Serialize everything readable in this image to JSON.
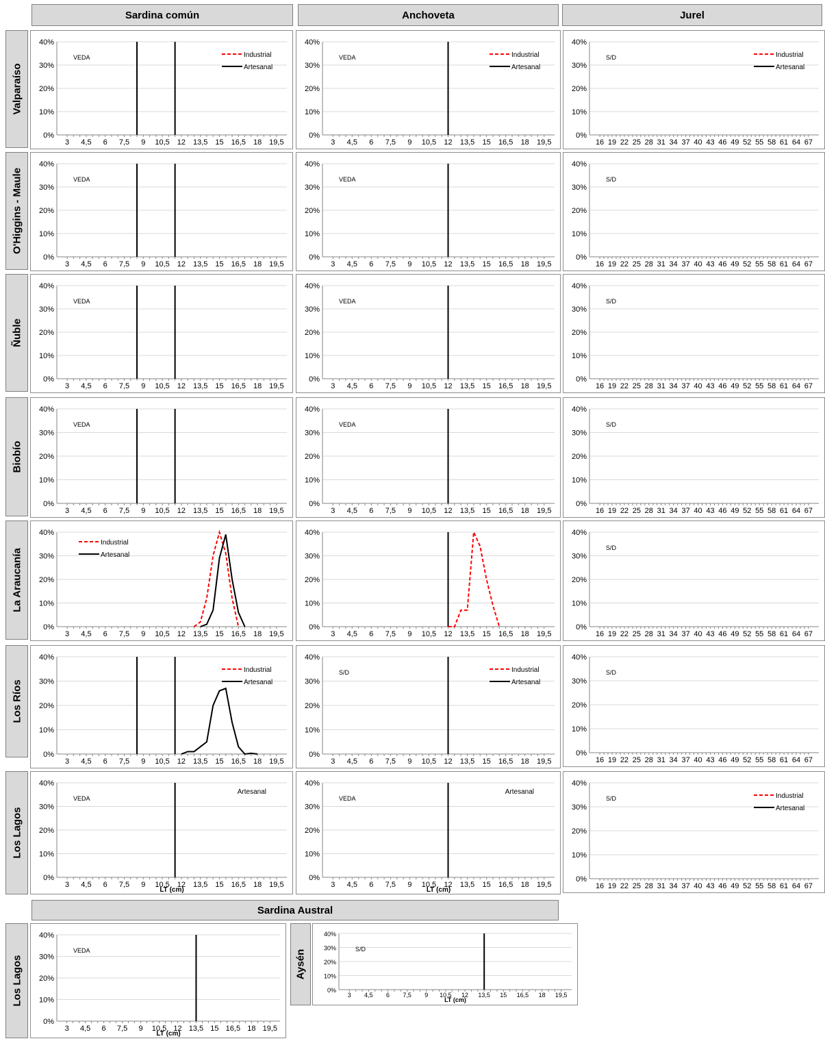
{
  "column_headers": [
    "Sardina común",
    "Anchoveta",
    "Jurel"
  ],
  "section_header": "Sardina Austral",
  "row_labels": [
    "Valparaíso",
    "O'Higgins - Maule",
    "Ñuble",
    "Biobío",
    "La Araucanía",
    "Los Ríos",
    "Los Lagos"
  ],
  "austral_row_labels": [
    "Los Lagos",
    "Aysén"
  ],
  "colors": {
    "industrial": "#ff0000",
    "artesanal": "#000000",
    "header_bg": "#d9d9d9",
    "grid": "#d9d9d9"
  },
  "legend": {
    "industrial": "Industrial",
    "artesanal": "Artesanal"
  },
  "chart_data": [
    {
      "id": "sc-valparaiso",
      "type": "line",
      "note": "VEDA",
      "legend": [
        "Industrial",
        "Artesanal"
      ],
      "legend_position": "top-right",
      "x_categories": "small",
      "ylim": [
        0,
        0.4
      ],
      "yticks": [
        "0%",
        "10%",
        "20%",
        "30%",
        "40%"
      ],
      "vlines": [
        8.5,
        11.5
      ],
      "series": []
    },
    {
      "id": "an-valparaiso",
      "type": "line",
      "note": "VEDA",
      "legend": [
        "Industrial",
        "Artesanal"
      ],
      "legend_position": "top-right",
      "x_categories": "small",
      "ylim": [
        0,
        0.4
      ],
      "yticks": [
        "0%",
        "10%",
        "20%",
        "30%",
        "40%"
      ],
      "vlines": [
        12
      ],
      "series": []
    },
    {
      "id": "ju-valparaiso",
      "type": "line",
      "note": "S/D",
      "legend": [
        "Industrial",
        "Artesanal"
      ],
      "legend_position": "top-right",
      "x_categories": "jurel",
      "ylim": [
        0,
        0.4
      ],
      "yticks": [
        "0%",
        "10%",
        "20%",
        "30%",
        "40%"
      ],
      "vlines": [],
      "series": []
    },
    {
      "id": "sc-ohiggins",
      "type": "line",
      "note": "VEDA",
      "legend": [],
      "x_categories": "small",
      "ylim": [
        0,
        0.4
      ],
      "yticks": [
        "0%",
        "10%",
        "20%",
        "30%",
        "40%"
      ],
      "vlines": [
        8.5,
        11.5
      ],
      "series": []
    },
    {
      "id": "an-ohiggins",
      "type": "line",
      "note": "VEDA",
      "legend": [],
      "x_categories": "small",
      "ylim": [
        0,
        0.4
      ],
      "yticks": [
        "0%",
        "10%",
        "20%",
        "30%",
        "40%"
      ],
      "vlines": [
        12
      ],
      "series": []
    },
    {
      "id": "ju-ohiggins",
      "type": "line",
      "note": "S/D",
      "legend": [],
      "x_categories": "jurel",
      "ylim": [
        0,
        0.4
      ],
      "yticks": [
        "0%",
        "10%",
        "20%",
        "30%",
        "40%"
      ],
      "vlines": [],
      "series": []
    },
    {
      "id": "sc-nuble",
      "type": "line",
      "note": "VEDA",
      "legend": [],
      "x_categories": "small",
      "ylim": [
        0,
        0.4
      ],
      "yticks": [
        "0%",
        "10%",
        "20%",
        "30%",
        "40%"
      ],
      "vlines": [
        8.5,
        11.5
      ],
      "series": []
    },
    {
      "id": "an-nuble",
      "type": "line",
      "note": "VEDA",
      "legend": [],
      "x_categories": "small",
      "ylim": [
        0,
        0.4
      ],
      "yticks": [
        "0%",
        "10%",
        "20%",
        "30%",
        "40%"
      ],
      "vlines": [
        12
      ],
      "series": []
    },
    {
      "id": "ju-nuble",
      "type": "line",
      "note": "S/D",
      "legend": [],
      "x_categories": "jurel",
      "ylim": [
        0,
        0.4
      ],
      "yticks": [
        "0%",
        "10%",
        "20%",
        "30%",
        "40%"
      ],
      "vlines": [],
      "series": []
    },
    {
      "id": "sc-biobio",
      "type": "line",
      "note": "VEDA",
      "legend": [],
      "x_categories": "small",
      "ylim": [
        0,
        0.4
      ],
      "yticks": [
        "0%",
        "10%",
        "20%",
        "30%",
        "40%"
      ],
      "vlines": [
        8.5,
        11.5
      ],
      "series": []
    },
    {
      "id": "an-biobio",
      "type": "line",
      "note": "VEDA",
      "legend": [],
      "x_categories": "small",
      "ylim": [
        0,
        0.4
      ],
      "yticks": [
        "0%",
        "10%",
        "20%",
        "30%",
        "40%"
      ],
      "vlines": [
        12
      ],
      "series": []
    },
    {
      "id": "ju-biobio",
      "type": "line",
      "note": "S/D",
      "legend": [],
      "x_categories": "jurel",
      "ylim": [
        0,
        0.4
      ],
      "yticks": [
        "0%",
        "10%",
        "20%",
        "30%",
        "40%"
      ],
      "vlines": [],
      "series": []
    },
    {
      "id": "sc-araucania",
      "type": "line",
      "note": "",
      "legend": [
        "Industrial",
        "Artesanal"
      ],
      "legend_position": "top-left",
      "x_categories": "small",
      "ylim": [
        0,
        0.4
      ],
      "yticks": [
        "0%",
        "10%",
        "20%",
        "30%",
        "40%"
      ],
      "vlines": [],
      "series": [
        {
          "name": "Industrial",
          "dashed": true,
          "x": [
            13,
            13.5,
            14,
            14.5,
            15,
            15.5,
            16,
            16.5
          ],
          "y": [
            0,
            0.02,
            0.12,
            0.3,
            0.4,
            0.31,
            0.12,
            0
          ]
        },
        {
          "name": "Artesanal",
          "dashed": false,
          "x": [
            13.5,
            14,
            14.5,
            15,
            15.5,
            16,
            16.5,
            17
          ],
          "y": [
            0,
            0.01,
            0.07,
            0.29,
            0.39,
            0.2,
            0.06,
            0
          ]
        }
      ]
    },
    {
      "id": "an-araucania",
      "type": "line",
      "note": "",
      "legend": [],
      "x_categories": "small",
      "ylim": [
        0,
        0.4
      ],
      "yticks": [
        "0%",
        "10%",
        "20%",
        "30%",
        "40%"
      ],
      "vlines": [
        12
      ],
      "series": [
        {
          "name": "Industrial",
          "dashed": true,
          "x": [
            12,
            12.5,
            13,
            13.5,
            14,
            14.5,
            15,
            15.5,
            16
          ],
          "y": [
            0,
            0,
            0.07,
            0.07,
            0.4,
            0.34,
            0.2,
            0.09,
            0
          ]
        }
      ]
    },
    {
      "id": "ju-araucania",
      "type": "line",
      "note": "S/D",
      "legend": [],
      "x_categories": "jurel",
      "ylim": [
        0,
        0.4
      ],
      "yticks": [
        "0%",
        "10%",
        "20%",
        "30%",
        "40%"
      ],
      "vlines": [],
      "series": []
    },
    {
      "id": "sc-losrios",
      "type": "line",
      "note": "",
      "legend": [
        "Industrial",
        "Artesanal"
      ],
      "legend_position": "top-right",
      "x_categories": "small",
      "ylim": [
        0,
        0.4
      ],
      "yticks": [
        "0%",
        "10%",
        "20%",
        "30%",
        "40%"
      ],
      "vlines": [
        8.5,
        11.5
      ],
      "series": [
        {
          "name": "Artesanal",
          "dashed": false,
          "x": [
            12,
            12.5,
            13,
            13.5,
            14,
            14.5,
            15,
            15.5,
            16,
            16.5,
            17,
            17.5,
            18
          ],
          "y": [
            0,
            0.01,
            0.01,
            0.03,
            0.05,
            0.2,
            0.26,
            0.27,
            0.13,
            0.03,
            0,
            0.003,
            0
          ]
        }
      ]
    },
    {
      "id": "an-losrios",
      "type": "line",
      "note": "S/D",
      "legend": [
        "Industrial",
        "Artesanal"
      ],
      "legend_position": "top-right",
      "x_categories": "small",
      "ylim": [
        0,
        0.4
      ],
      "yticks": [
        "0%",
        "10%",
        "20%",
        "30%",
        "40%"
      ],
      "vlines": [
        12
      ],
      "series": []
    },
    {
      "id": "ju-losrios",
      "type": "line",
      "note": "S/D",
      "legend": [],
      "x_categories": "jurel",
      "ylim": [
        0,
        0.4
      ],
      "yticks": [
        "0%",
        "10%",
        "20%",
        "30%",
        "40%"
      ],
      "vlines": [],
      "series": []
    },
    {
      "id": "sc-loslagos",
      "type": "line",
      "note": "VEDA",
      "legend": [
        "Artesanal"
      ],
      "legend_position": "top-right",
      "x_categories": "small",
      "xlabel": "LT (cm)",
      "ylim": [
        0,
        0.4
      ],
      "yticks": [
        "0%",
        "10%",
        "20%",
        "30%",
        "40%"
      ],
      "vlines": [
        11.5
      ],
      "series": []
    },
    {
      "id": "an-loslagos",
      "type": "line",
      "note": "VEDA",
      "legend": [
        "Artesanal"
      ],
      "legend_position": "top-right",
      "x_categories": "small",
      "xlabel": "LT (cm)",
      "ylim": [
        0,
        0.4
      ],
      "yticks": [
        "0%",
        "10%",
        "20%",
        "30%",
        "40%"
      ],
      "vlines": [
        12
      ],
      "series": []
    },
    {
      "id": "ju-loslagos",
      "type": "line",
      "note": "S/D",
      "legend": [
        "Industrial",
        "Artesanal"
      ],
      "legend_position": "top-right",
      "x_categories": "jurel",
      "ylim": [
        0,
        0.4
      ],
      "yticks": [
        "0%",
        "10%",
        "20%",
        "30%",
        "40%"
      ],
      "vlines": [],
      "series": []
    },
    {
      "id": "sa-loslagos",
      "type": "line",
      "note": "VEDA",
      "legend": [],
      "x_categories": "small",
      "xlabel": "LT (cm)",
      "ylim": [
        0,
        0.4
      ],
      "yticks": [
        "0%",
        "10%",
        "20%",
        "30%",
        "40%"
      ],
      "vlines": [
        13.5
      ],
      "series": []
    },
    {
      "id": "sa-aysen",
      "type": "line",
      "note": "S/D",
      "legend": [],
      "x_categories": "small",
      "xlabel": "LT (cm)",
      "ylim": [
        0,
        0.4
      ],
      "yticks": [
        "0%",
        "10%",
        "20%",
        "30%",
        "40%"
      ],
      "vlines": [
        13.5
      ],
      "series": []
    }
  ],
  "x_tick_labels": {
    "small": [
      "3",
      "4,5",
      "6",
      "7,5",
      "9",
      "10,5",
      "12",
      "13,5",
      "15",
      "16,5",
      "18",
      "19,5"
    ],
    "jurel": [
      "16",
      "19",
      "22",
      "25",
      "28",
      "31",
      "34",
      "37",
      "40",
      "43",
      "46",
      "49",
      "52",
      "55",
      "58",
      "61",
      "64",
      "67"
    ]
  }
}
